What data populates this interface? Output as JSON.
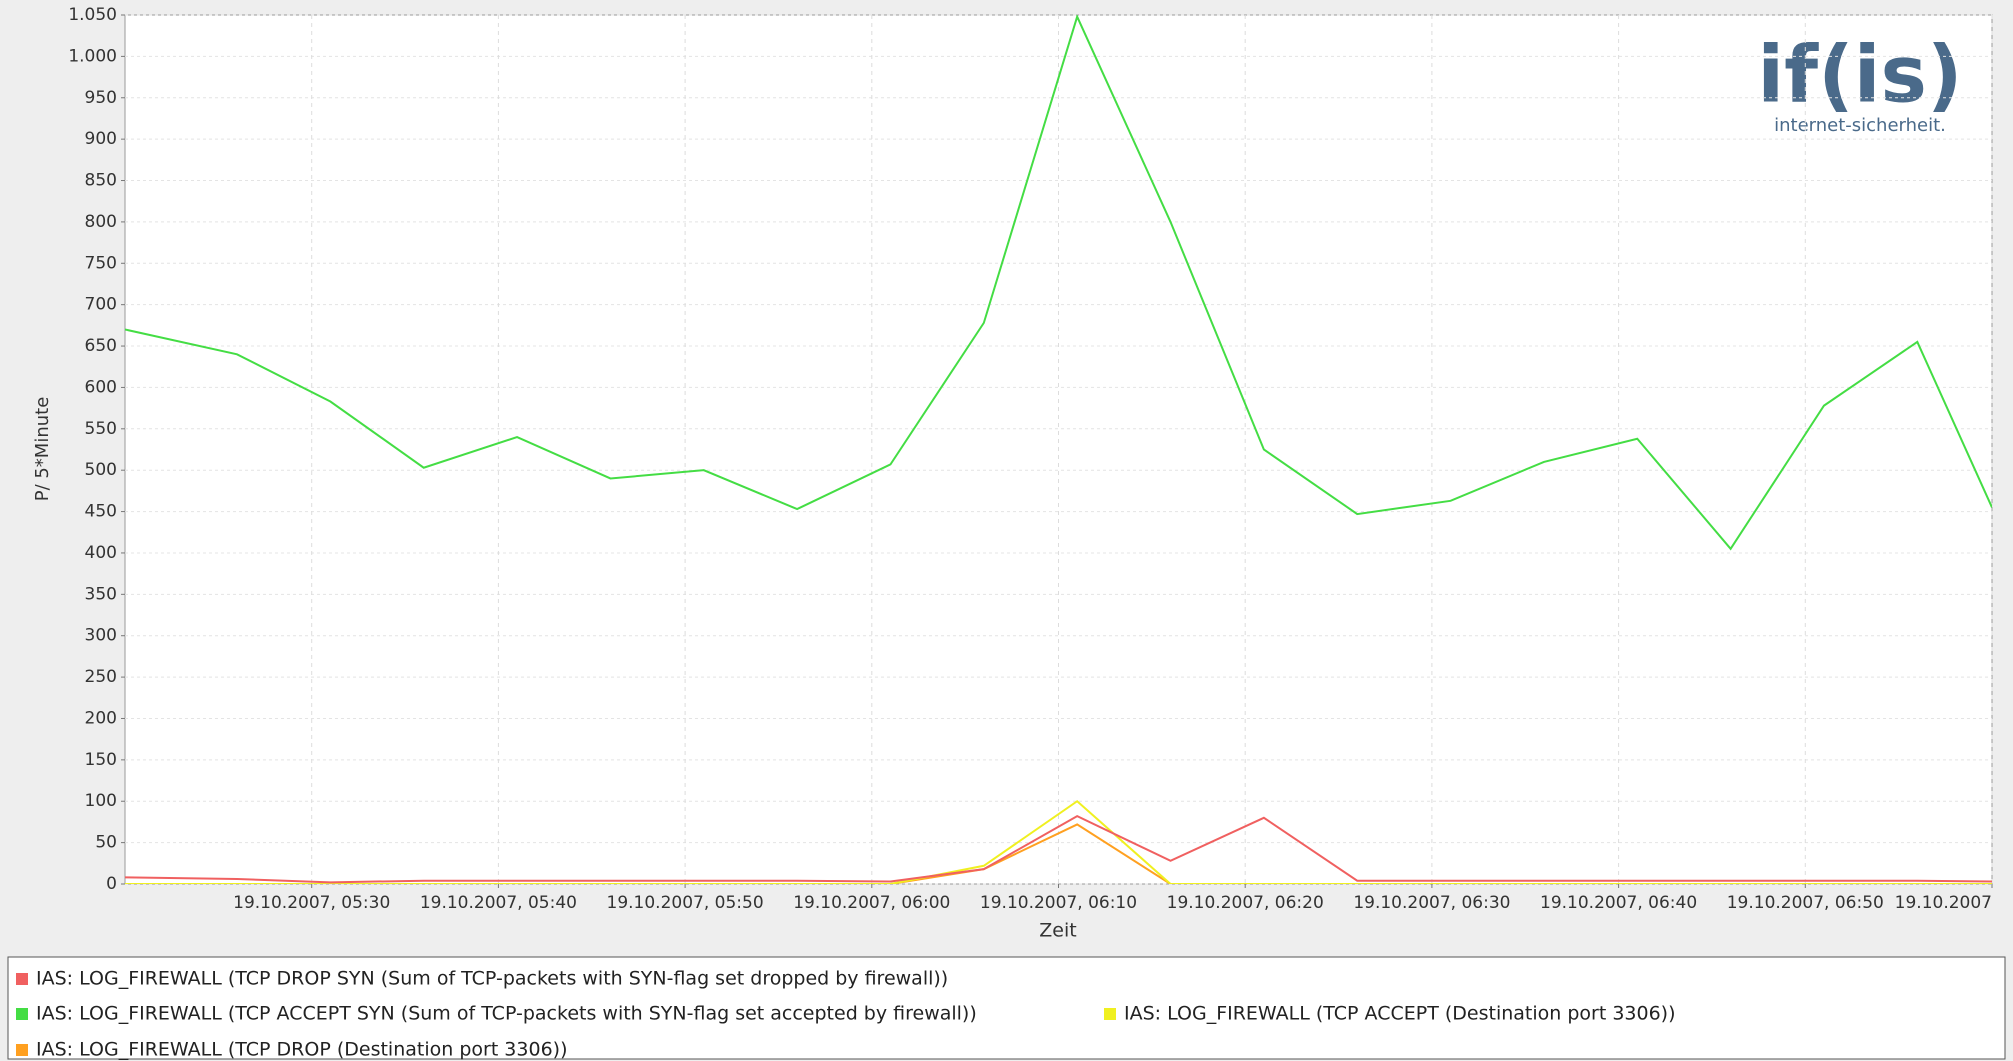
{
  "chart_data": {
    "type": "line",
    "y_label": "P/ 5*Minute",
    "x_label": "Zeit",
    "logo": {
      "text": "if(is)",
      "tagline": "internet-sicherheit."
    },
    "x": [
      "19.10.2007, 05:20",
      "19.10.2007, 05:26",
      "19.10.2007, 05:31",
      "19.10.2007, 05:36",
      "19.10.2007, 05:41",
      "19.10.2007, 05:46",
      "19.10.2007, 05:51",
      "19.10.2007, 05:56",
      "19.10.2007, 06:01",
      "19.10.2007, 06:06",
      "19.10.2007, 06:11",
      "19.10.2007, 06:16",
      "19.10.2007, 06:21",
      "19.10.2007, 06:26",
      "19.10.2007, 06:31",
      "19.10.2007, 06:36",
      "19.10.2007, 06:41",
      "19.10.2007, 06:46",
      "19.10.2007, 06:51",
      "19.10.2007, 06:56",
      "19.10.2007, 07:00"
    ],
    "series": [
      {
        "name": "IAS: LOG_FIREWALL (TCP DROP SYN (Sum of TCP-packets with SYN-flag set dropped by firewall))",
        "color": "#f06060",
        "values": [
          8,
          6,
          2,
          4,
          4,
          4,
          4,
          4,
          3,
          18,
          82,
          28,
          80,
          4,
          4,
          4,
          4,
          4,
          4,
          4,
          3
        ]
      },
      {
        "name": "IAS: LOG_FIREWALL (TCP ACCEPT SYN (Sum of TCP-packets with SYN-flag set accepted by firewall))",
        "color": "#44dd44",
        "values": [
          670,
          640,
          583,
          503,
          540,
          490,
          500,
          453,
          507,
          678,
          1048,
          800,
          525,
          447,
          463,
          510,
          538,
          405,
          578,
          655,
          455
        ]
      },
      {
        "name": "IAS: LOG_FIREWALL (TCP ACCEPT (Destination port 3306))",
        "color": "#f0f020",
        "values": [
          0,
          0,
          0,
          0,
          0,
          0,
          0,
          0,
          0,
          22,
          100,
          0,
          0,
          0,
          0,
          0,
          0,
          0,
          0,
          0,
          0
        ]
      },
      {
        "name": "IAS: LOG_FIREWALL (TCP DROP (Destination port 3306))",
        "color": "#ffa020",
        "values": [
          0,
          0,
          0,
          0,
          0,
          0,
          0,
          0,
          0,
          18,
          72,
          0,
          0,
          0,
          0,
          0,
          0,
          0,
          0,
          0,
          0
        ]
      }
    ],
    "xlim": [
      "19.10.2007, 05:20",
      "19.10.2007, 07:00"
    ],
    "xticks": [
      {
        "value": "19.10.2007, 05:30",
        "label": "19.10.2007, 05:30"
      },
      {
        "value": "19.10.2007, 05:40",
        "label": "19.10.2007, 05:40"
      },
      {
        "value": "19.10.2007, 05:50",
        "label": "19.10.2007, 05:50"
      },
      {
        "value": "19.10.2007, 06:00",
        "label": "19.10.2007, 06:00"
      },
      {
        "value": "19.10.2007, 06:10",
        "label": "19.10.2007, 06:10"
      },
      {
        "value": "19.10.2007, 06:20",
        "label": "19.10.2007, 06:20"
      },
      {
        "value": "19.10.2007, 06:30",
        "label": "19.10.2007, 06:30"
      },
      {
        "value": "19.10.2007, 06:40",
        "label": "19.10.2007, 06:40"
      },
      {
        "value": "19.10.2007, 06:50",
        "label": "19.10.2007, 06:50"
      },
      {
        "value": "19.10.2007, 07:00",
        "label": "19.10.2007"
      }
    ],
    "ylim": [
      0,
      1050
    ],
    "yticks": [
      0,
      50,
      100,
      150,
      200,
      250,
      300,
      350,
      400,
      450,
      500,
      550,
      600,
      650,
      700,
      750,
      800,
      850,
      900,
      950,
      {
        "value": 1000,
        "label": "1.000"
      },
      {
        "value": 1050,
        "label": "1.050"
      }
    ],
    "grid": true
  }
}
